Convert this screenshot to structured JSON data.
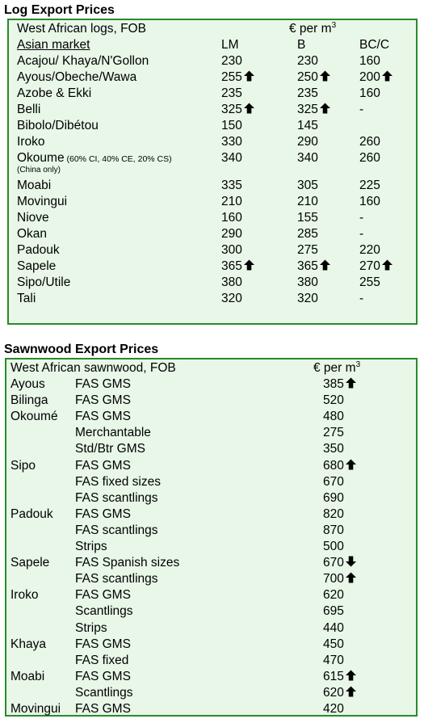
{
  "log": {
    "title": "Log Export Prices",
    "header_left": "West African logs, FOB",
    "header_unit": "€ per m",
    "header_unit_sup": "3",
    "market_label": "Asian market",
    "cols": [
      "LM",
      "B",
      "BC/C"
    ],
    "rows": [
      {
        "name": "Acajou/ Khaya/N'Gollon",
        "lm": "230",
        "b": "230",
        "bc": "160"
      },
      {
        "name": "Ayous/Obeche/Wawa",
        "lm": "255",
        "b": "250",
        "bc": "200"
      },
      {
        "name": "Azobe & Ekki",
        "lm": "235",
        "b": "235",
        "bc": "160"
      },
      {
        "name": "Belli",
        "lm": "325",
        "b": "325",
        "bc": "-"
      },
      {
        "name": "Bibolo/Dibétou",
        "lm": "150",
        "b": "145",
        "bc": ""
      },
      {
        "name": "Iroko",
        "lm": "330",
        "b": "290",
        "bc": "260"
      },
      {
        "name": "Okoume",
        "note": "(60% CI, 40% CE, 20% CS)",
        "lm": "340",
        "b": "340",
        "bc": "260"
      },
      {
        "name": "Moabi",
        "lm": "335",
        "b": "305",
        "bc": "225"
      },
      {
        "name": "Movingui",
        "lm": "210",
        "b": "210",
        "bc": "160"
      },
      {
        "name": "Niove",
        "lm": "160",
        "b": "155",
        "bc": "-"
      },
      {
        "name": "Okan",
        "lm": "290",
        "b": "285",
        "bc": "-"
      },
      {
        "name": "Padouk",
        "lm": "300",
        "b": "275",
        "bc": "220"
      },
      {
        "name": "Sapele",
        "lm": "365",
        "b": "365",
        "bc": "270"
      },
      {
        "name": "Sipo/Utile",
        "lm": "380",
        "b": "380",
        "bc": "255"
      },
      {
        "name": "Tali",
        "lm": "320",
        "b": "320",
        "bc": "-"
      }
    ],
    "okoume_subnote": "(China only)"
  },
  "saw": {
    "title": "Sawnwood Export Prices",
    "header_left": "West African sawnwood, FOB",
    "header_unit": "€ per m",
    "header_unit_sup": "3",
    "rows": [
      {
        "species": "Ayous",
        "grade": "FAS GMS",
        "price": "385"
      },
      {
        "species": "Bilinga",
        "grade": "FAS GMS",
        "price": "520"
      },
      {
        "species": "Okoumé",
        "grade": "FAS GMS",
        "price": "480"
      },
      {
        "species": "",
        "grade": "Merchantable",
        "price": "275"
      },
      {
        "species": "",
        "grade": "Std/Btr GMS",
        "price": "350"
      },
      {
        "species": "Sipo",
        "grade": "FAS GMS",
        "price": "680"
      },
      {
        "species": "",
        "grade": "FAS fixed sizes",
        "price": "670"
      },
      {
        "species": "",
        "grade": "FAS scantlings",
        "price": "690"
      },
      {
        "species": "Padouk",
        "grade": "FAS GMS",
        "price": "820"
      },
      {
        "species": "",
        "grade": "FAS scantlings",
        "price": "870"
      },
      {
        "species": "",
        "grade": "Strips",
        "price": "500"
      },
      {
        "species": "Sapele",
        "grade": "FAS Spanish sizes",
        "price": "670"
      },
      {
        "species": "",
        "grade": "FAS scantlings",
        "price": "700"
      },
      {
        "species": "Iroko",
        "grade": "FAS GMS",
        "price": "620"
      },
      {
        "species": "",
        "grade": "Scantlings",
        "price": "695"
      },
      {
        "species": "",
        "grade": "Strips",
        "price": "440"
      },
      {
        "species": "Khaya",
        "grade": "FAS GMS",
        "price": "450"
      },
      {
        "species": "",
        "grade": "FAS fixed",
        "price": "470"
      },
      {
        "species": "Moabi",
        "grade": "FAS GMS",
        "price": "615"
      },
      {
        "species": "",
        "grade": "Scantlings",
        "price": "620"
      },
      {
        "species": "Movingui",
        "grade": "FAS GMS",
        "price": "420"
      }
    ]
  },
  "indicators": {
    "up_icon": "arrow-up-icon",
    "down_icon": "arrow-down-icon",
    "log_arrows": {
      "Ayous/Obeche/Wawa": [
        "up",
        "up",
        "up"
      ],
      "Belli": [
        "up",
        "up",
        ""
      ],
      "Sapele": [
        "up",
        "up",
        "up"
      ]
    },
    "saw_arrows": {
      "0": "up",
      "5": "up",
      "11": "down",
      "12": "up",
      "18": "up",
      "19": "up"
    }
  },
  "colors": {
    "box_fill": "#e8f7e8",
    "box_border": "#2a8a2a"
  }
}
